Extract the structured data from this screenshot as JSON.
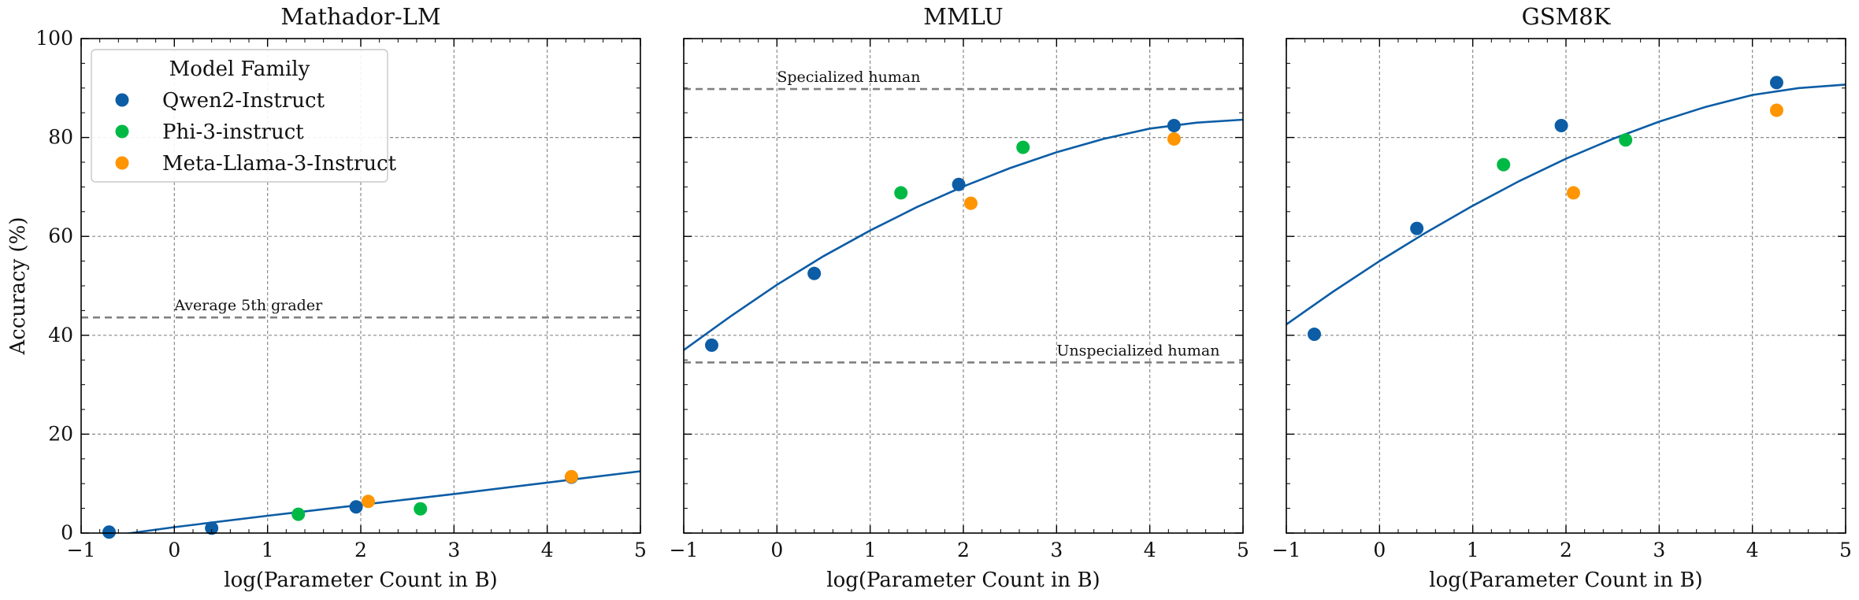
{
  "colors": {
    "fit": "#0C5DA5",
    "qwen": "#0C5DA5",
    "phi": "#00B945",
    "llama": "#FF9500",
    "reference": "#808080"
  },
  "legend": {
    "title": "Model Family",
    "entries": [
      {
        "name": "Qwen2-Instruct",
        "color": "#0C5DA5"
      },
      {
        "name": "Phi-3-instruct",
        "color": "#00B945"
      },
      {
        "name": "Meta-Llama-3-Instruct",
        "color": "#FF9500"
      }
    ]
  },
  "chart_data": [
    {
      "type": "scatter",
      "title": "Mathador-LM",
      "xlabel": "log(Parameter Count in B)",
      "ylabel": "Accuracy (%)",
      "xlim": [
        -1,
        5
      ],
      "ylim": [
        0,
        100
      ],
      "xticks": [
        -1,
        0,
        1,
        2,
        3,
        4,
        5
      ],
      "yticks": [
        0,
        20,
        40,
        60,
        80,
        100
      ],
      "grid": true,
      "legend_position": "top-left",
      "series": [
        {
          "name": "Qwen2-Instruct",
          "color": "#0C5DA5",
          "points": [
            [
              -0.7,
              0.2
            ],
            [
              0.4,
              1.0
            ],
            [
              1.95,
              5.3
            ],
            [
              4.26,
              11.3
            ]
          ]
        },
        {
          "name": "Phi-3-instruct",
          "color": "#00B945",
          "points": [
            [
              1.33,
              3.8
            ],
            [
              2.64,
              4.9
            ]
          ]
        },
        {
          "name": "Meta-Llama-3-Instruct",
          "color": "#FF9500",
          "points": [
            [
              2.08,
              6.4
            ],
            [
              4.26,
              11.4
            ]
          ]
        }
      ],
      "fit": [
        [
          -0.7,
          -0.6
        ],
        [
          0.0,
          1.2
        ],
        [
          1.0,
          3.5
        ],
        [
          2.0,
          5.7
        ],
        [
          3.0,
          7.9
        ],
        [
          4.0,
          10.2
        ],
        [
          5.0,
          12.5
        ]
      ],
      "reference_lines": [
        {
          "label": "Average 5th grader",
          "y": 43.6,
          "label_x": 0.0
        }
      ]
    },
    {
      "type": "scatter",
      "title": "MMLU",
      "xlabel": "log(Parameter Count in B)",
      "ylabel": "",
      "xlim": [
        -1,
        5
      ],
      "ylim": [
        0,
        100
      ],
      "xticks": [
        -1,
        0,
        1,
        2,
        3,
        4,
        5
      ],
      "yticks": [
        0,
        20,
        40,
        60,
        80,
        100
      ],
      "grid": true,
      "series": [
        {
          "name": "Qwen2-Instruct",
          "color": "#0C5DA5",
          "points": [
            [
              -0.7,
              38.0
            ],
            [
              0.4,
              52.5
            ],
            [
              1.95,
              70.5
            ],
            [
              4.26,
              82.4
            ]
          ]
        },
        {
          "name": "Phi-3-instruct",
          "color": "#00B945",
          "points": [
            [
              1.33,
              68.8
            ],
            [
              2.64,
              78.0
            ]
          ]
        },
        {
          "name": "Meta-Llama-3-Instruct",
          "color": "#FF9500",
          "points": [
            [
              2.08,
              66.7
            ],
            [
              4.26,
              79.7
            ]
          ]
        }
      ],
      "fit": [
        [
          -1.0,
          37.0
        ],
        [
          -0.5,
          43.8
        ],
        [
          0.0,
          50.2
        ],
        [
          0.5,
          56.0
        ],
        [
          1.0,
          61.2
        ],
        [
          1.5,
          65.9
        ],
        [
          2.0,
          70.1
        ],
        [
          2.5,
          73.8
        ],
        [
          3.0,
          77.0
        ],
        [
          3.5,
          79.7
        ],
        [
          4.0,
          81.8
        ],
        [
          4.5,
          83.0
        ],
        [
          5.0,
          83.6
        ]
      ],
      "reference_lines": [
        {
          "label": "Specialized human",
          "y": 89.8,
          "label_x": 0.0
        },
        {
          "label": "Unspecialized human",
          "y": 34.5,
          "label_x": 3.0
        }
      ]
    },
    {
      "type": "scatter",
      "title": "GSM8K",
      "xlabel": "log(Parameter Count in B)",
      "ylabel": "",
      "xlim": [
        -1,
        5
      ],
      "ylim": [
        0,
        100
      ],
      "xticks": [
        -1,
        0,
        1,
        2,
        3,
        4,
        5
      ],
      "yticks": [
        0,
        20,
        40,
        60,
        80,
        100
      ],
      "grid": true,
      "series": [
        {
          "name": "Qwen2-Instruct",
          "color": "#0C5DA5",
          "points": [
            [
              -0.7,
              40.2
            ],
            [
              0.4,
              61.6
            ],
            [
              1.95,
              82.4
            ],
            [
              4.26,
              91.1
            ]
          ]
        },
        {
          "name": "Phi-3-instruct",
          "color": "#00B945",
          "points": [
            [
              1.33,
              74.5
            ],
            [
              2.64,
              79.5
            ]
          ]
        },
        {
          "name": "Meta-Llama-3-Instruct",
          "color": "#FF9500",
          "points": [
            [
              2.08,
              68.8
            ],
            [
              4.26,
              85.5
            ]
          ]
        }
      ],
      "fit": [
        [
          -1.0,
          42.2
        ],
        [
          -0.5,
          48.8
        ],
        [
          0.0,
          55.0
        ],
        [
          0.5,
          60.8
        ],
        [
          1.0,
          66.2
        ],
        [
          1.5,
          71.2
        ],
        [
          2.0,
          75.7
        ],
        [
          2.5,
          79.7
        ],
        [
          3.0,
          83.2
        ],
        [
          3.5,
          86.2
        ],
        [
          4.0,
          88.6
        ],
        [
          4.5,
          90.0
        ],
        [
          5.0,
          90.7
        ]
      ],
      "reference_lines": []
    }
  ]
}
